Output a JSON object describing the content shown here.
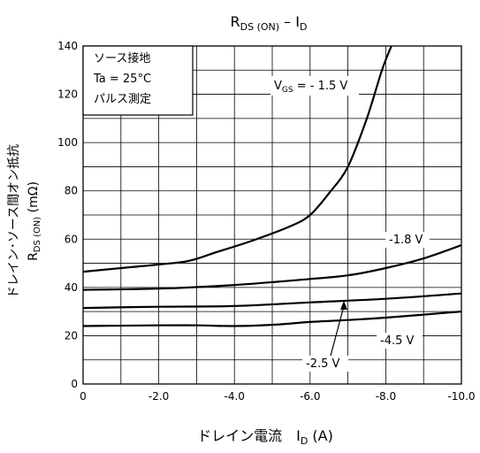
{
  "chart_data": {
    "type": "line",
    "title": {
      "main": "R",
      "sub1": "DS (ON)",
      "mid": " – I",
      "sub2": "D"
    },
    "xlabel": {
      "main": "ドレイン電流　I",
      "sub": "D",
      "tail": "  (A)"
    },
    "ylabel": {
      "line1": "ドレイン･ソース間オン抵抗",
      "line2_main": "R",
      "line2_sub": "DS (ON)",
      "line2_unit": "(mΩ)"
    },
    "xlim": [
      0,
      -10
    ],
    "ylim": [
      0,
      140
    ],
    "x_ticks": [
      0,
      -2,
      -4,
      -6,
      -8,
      -10
    ],
    "x_tick_labels": [
      "0",
      "-2.0",
      "-4.0",
      "-6.0",
      "-8.0",
      "-10.0"
    ],
    "y_ticks": [
      0,
      20,
      40,
      60,
      80,
      100,
      120,
      140
    ],
    "y_tick_labels": [
      "0",
      "20",
      "40",
      "60",
      "80",
      "100",
      "120",
      "140"
    ],
    "grid": true,
    "conditions": [
      "ソース接地",
      "Ta = 25°C",
      "パルス測定"
    ],
    "series": [
      {
        "name": "VGS = - 1.5 V",
        "label": {
          "main": "V",
          "sub": "GS",
          "tail": " = - 1.5 V"
        },
        "points": [
          [
            0,
            46.5
          ],
          [
            -1,
            48
          ],
          [
            -2,
            49.5
          ],
          [
            -2.8,
            51
          ],
          [
            -3.5,
            54.5
          ],
          [
            -4.5,
            59.5
          ],
          [
            -5.5,
            65.5
          ],
          [
            -6,
            70
          ],
          [
            -6.5,
            79
          ],
          [
            -7,
            90
          ],
          [
            -7.5,
            110
          ],
          [
            -7.9,
            130
          ],
          [
            -8.15,
            140
          ]
        ]
      },
      {
        "name": "-1.8 V",
        "label": {
          "main": "-1.8 V"
        },
        "points": [
          [
            0,
            39
          ],
          [
            -2,
            39.5
          ],
          [
            -4,
            41
          ],
          [
            -6,
            43.5
          ],
          [
            -7,
            45
          ],
          [
            -8,
            48
          ],
          [
            -9,
            52
          ],
          [
            -10,
            57.5
          ]
        ]
      },
      {
        "name": "-2.5 V",
        "label": {
          "main": "-2.5 V"
        },
        "points": [
          [
            0,
            31.5
          ],
          [
            -2,
            32
          ],
          [
            -4,
            32.3
          ],
          [
            -6,
            33.8
          ],
          [
            -8,
            35.3
          ],
          [
            -10,
            37.5
          ]
        ]
      },
      {
        "name": "-4.5 V",
        "label": {
          "main": "-4.5 V"
        },
        "points": [
          [
            0,
            24
          ],
          [
            -2,
            24.3
          ],
          [
            -3,
            24.3
          ],
          [
            -4,
            24
          ],
          [
            -5,
            24.5
          ],
          [
            -6,
            25.7
          ],
          [
            -7,
            26.5
          ],
          [
            -8,
            27.5
          ],
          [
            -10,
            30
          ]
        ]
      }
    ]
  }
}
